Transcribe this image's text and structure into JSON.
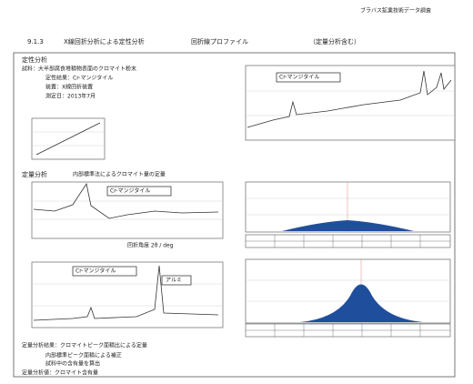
{
  "header": {
    "org": "ブラバス鉱業技術データ調査"
  },
  "section": {
    "number": "9.1.3",
    "title": "X線回折分析による定性分析",
    "subtitle": "回折線プロファイル",
    "note": "（定量分析含む）"
  },
  "qualitative": {
    "heading": "定性分析",
    "lines": [
      "試料：大半部腐食堆積物表面のクロマイト粉末",
      "定性結果：Cr-マンジタイル",
      "装置：X線回折装置",
      "測定日：2013年7月"
    ]
  },
  "labels": {
    "peak1": "Cr-マンジタイル",
    "peak2": "Cr-マンジタイル",
    "peak3": "Cr-マンジタイル",
    "peak4": "アルミ"
  },
  "quantitative": {
    "heading": "定量分析",
    "note": "内部標準法によるクロマイト量の定量",
    "axis": "回折角度 2θ / deg"
  },
  "footer": {
    "lines": [
      "定量分析結果：クロマイトピーク面積比による定量",
      "内部標準ピーク面積による補正",
      "試料中の含有量を算出",
      "定量分析値：クロマイト含有量"
    ]
  }
}
